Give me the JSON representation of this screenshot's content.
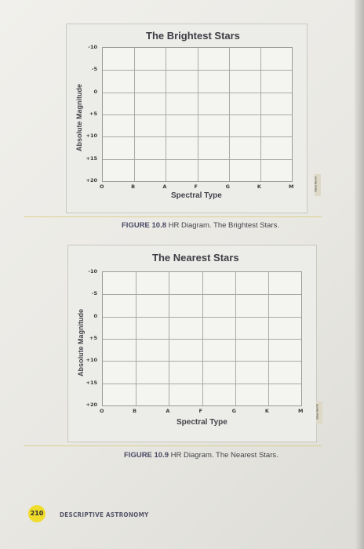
{
  "figures": [
    {
      "title": "The Brightest Stars",
      "ylabel": "Absolute Magnitude",
      "xlabel": "Spectral Type",
      "y_ticks": [
        "-10",
        "-5",
        "0",
        "+5",
        "+10",
        "+15",
        "+20"
      ],
      "x_ticks": [
        "O",
        "B",
        "A",
        "F",
        "G",
        "K",
        "M"
      ],
      "caption_label": "FIGURE 10.8",
      "caption_text": "HR Diagram. The Brightest Stars.",
      "credit": "Steve Merrill"
    },
    {
      "title": "The Nearest Stars",
      "ylabel": "Absolute Magnitude",
      "xlabel": "Spectral Type",
      "y_ticks": [
        "-10",
        "-5",
        "0",
        "+5",
        "+10",
        "+15",
        "+20"
      ],
      "x_ticks": [
        "O",
        "B",
        "A",
        "F",
        "G",
        "K",
        "M"
      ],
      "caption_label": "FIGURE 10.9",
      "caption_text": "HR Diagram. The Nearest Stars.",
      "credit": "Steve Merrill"
    }
  ],
  "footer": {
    "page_number": "210",
    "running_head": "DESCRIPTIVE ASTRONOMY"
  }
}
